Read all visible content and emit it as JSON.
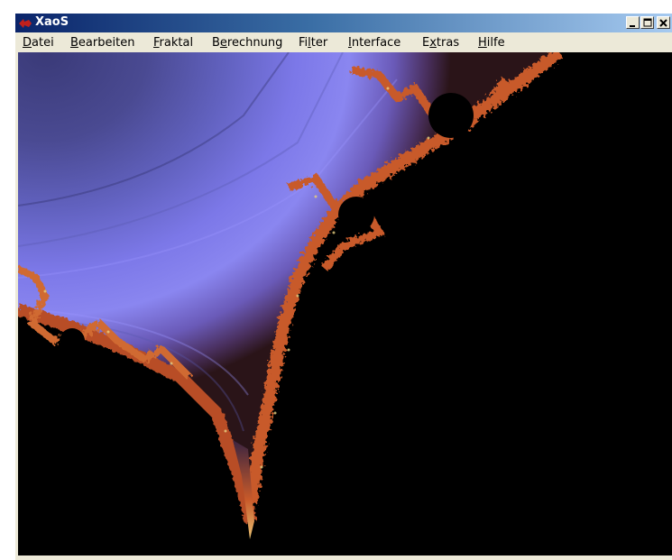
{
  "window": {
    "title": "XaoS"
  },
  "menu": [
    {
      "pre": "",
      "acc": "D",
      "post": "atei"
    },
    {
      "pre": "",
      "acc": "B",
      "post": "earbeiten"
    },
    {
      "pre": "",
      "acc": "F",
      "post": "raktal"
    },
    {
      "pre": "B",
      "acc": "e",
      "post": "rechnung"
    },
    {
      "pre": "Fi",
      "acc": "l",
      "post": "ter"
    },
    {
      "pre": "",
      "acc": "I",
      "post": "nterface"
    },
    {
      "pre": "E",
      "acc": "x",
      "post": "tras"
    },
    {
      "pre": "",
      "acc": "H",
      "post": "ilfe"
    }
  ],
  "colors": {
    "fractal_interior": "#000000",
    "fractal_edge": "#c85a2a",
    "gradient_light": "#8a86f0",
    "gradient_dark": "#3a3a78"
  },
  "icons": [
    "xaos-app-icon",
    "minimize-icon",
    "maximize-icon",
    "close-icon"
  ]
}
